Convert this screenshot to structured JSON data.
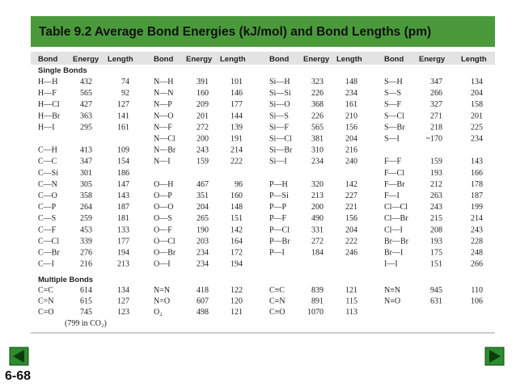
{
  "header": {
    "title": "Table 9.2  Average Bond Energies (kJ/mol) and Bond Lengths (pm)"
  },
  "table": {
    "columns": [
      "Bond",
      "Energy",
      "Length",
      "Bond",
      "Energy",
      "Length",
      "Bond",
      "Energy",
      "Length",
      "Bond",
      "Energy",
      "Length"
    ],
    "sections": [
      {
        "title": "Single Bonds",
        "rows": [
          [
            "H—H",
            432,
            74,
            "N—H",
            391,
            101,
            "Si—H",
            323,
            148,
            "S—H",
            347,
            134
          ],
          [
            "H—F",
            565,
            92,
            "N—N",
            160,
            146,
            "Si—Si",
            226,
            234,
            "S—S",
            266,
            204
          ],
          [
            "H—Cl",
            427,
            127,
            "N—P",
            209,
            177,
            "Si—O",
            368,
            161,
            "S—F",
            327,
            158
          ],
          [
            "H—Br",
            363,
            141,
            "N—O",
            201,
            144,
            "Si—S",
            226,
            210,
            "S—Cl",
            271,
            201
          ],
          [
            "H—I",
            295,
            161,
            "N—F",
            272,
            139,
            "Si—F",
            565,
            156,
            "S—Br",
            218,
            225
          ],
          [
            null,
            null,
            null,
            "N—Cl",
            200,
            191,
            "Si—Cl",
            381,
            204,
            "S—I",
            "~170",
            234
          ],
          [
            "C—H",
            413,
            109,
            "N—Br",
            243,
            214,
            "Si—Br",
            310,
            216,
            null,
            null,
            null
          ],
          [
            "C—C",
            347,
            154,
            "N—I",
            159,
            222,
            "Si—I",
            234,
            240,
            "F—F",
            159,
            143
          ],
          [
            "C—Si",
            301,
            186,
            null,
            null,
            null,
            null,
            null,
            null,
            "F—Cl",
            193,
            166
          ],
          [
            "C—N",
            305,
            147,
            "O—H",
            467,
            96,
            "P—H",
            320,
            142,
            "F—Br",
            212,
            178
          ],
          [
            "C—O",
            358,
            143,
            "O—P",
            351,
            160,
            "P—Si",
            213,
            227,
            "F—I",
            263,
            187
          ],
          [
            "C—P",
            264,
            187,
            "O—O",
            204,
            148,
            "P—P",
            200,
            221,
            "Cl—Cl",
            243,
            199
          ],
          [
            "C—S",
            259,
            181,
            "O—S",
            265,
            151,
            "P—F",
            490,
            156,
            "Cl—Br",
            215,
            214
          ],
          [
            "C—F",
            453,
            133,
            "O—F",
            190,
            142,
            "P—Cl",
            331,
            204,
            "Cl—I",
            208,
            243
          ],
          [
            "C—Cl",
            339,
            177,
            "O—Cl",
            203,
            164,
            "P—Br",
            272,
            222,
            "Br—Br",
            193,
            228
          ],
          [
            "C—Br",
            276,
            194,
            "O—Br",
            234,
            172,
            "P—I",
            184,
            246,
            "Br—I",
            175,
            248
          ],
          [
            "C—I",
            216,
            213,
            "O—I",
            234,
            194,
            null,
            null,
            null,
            "I—I",
            151,
            266
          ]
        ]
      },
      {
        "title": "Multiple Bonds",
        "rows": [
          [
            "C=C",
            614,
            134,
            "N=N",
            418,
            122,
            "C≡C",
            839,
            121,
            "N≡N",
            945,
            110
          ],
          [
            "C=N",
            615,
            127,
            "N=O",
            607,
            120,
            "C≡N",
            891,
            115,
            "N≡O",
            631,
            106
          ],
          [
            "C=O",
            745,
            123,
            "O₂",
            498,
            121,
            "C≡O",
            1070,
            113,
            null,
            null,
            null
          ]
        ],
        "note": "(799 in CO₂)"
      }
    ]
  },
  "footer": {
    "page": "6-68"
  }
}
